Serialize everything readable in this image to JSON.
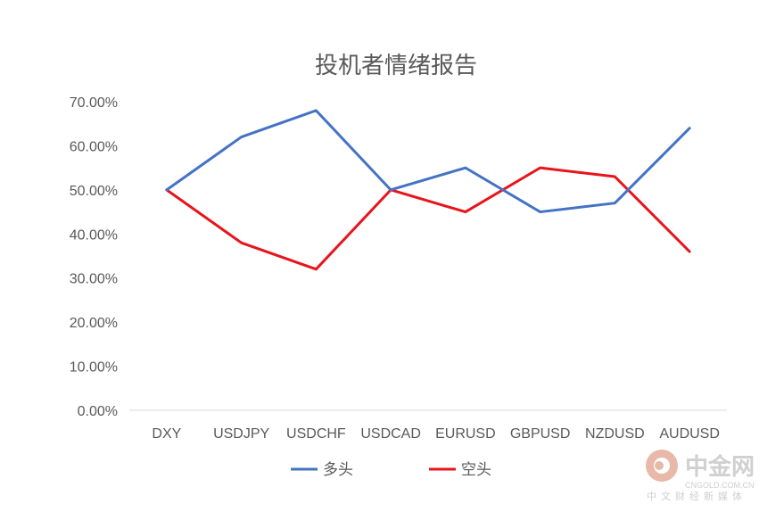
{
  "chart_data": {
    "type": "line",
    "title": "投机者情绪报告",
    "categories": [
      "DXY",
      "USDJPY",
      "USDCHF",
      "USDCAD",
      "EURUSD",
      "GBPUSD",
      "NZDUSD",
      "AUDUSD"
    ],
    "ylim": [
      0,
      70
    ],
    "yticks": [
      "0.00%",
      "10.00%",
      "20.00%",
      "30.00%",
      "40.00%",
      "50.00%",
      "60.00%",
      "70.00%"
    ],
    "series": [
      {
        "name": "多头",
        "color": "#4472c4",
        "values": [
          50,
          62,
          68,
          50,
          55,
          45,
          47,
          64
        ]
      },
      {
        "name": "空头",
        "color": "#e8141b",
        "values": [
          50,
          38,
          32,
          50,
          45,
          55,
          53,
          36
        ]
      }
    ],
    "grid": false,
    "legend": "bottom"
  },
  "watermark": {
    "name": "中金网",
    "url": "CNGOLD.COM.CN",
    "tagline": "中文财经新媒体"
  }
}
